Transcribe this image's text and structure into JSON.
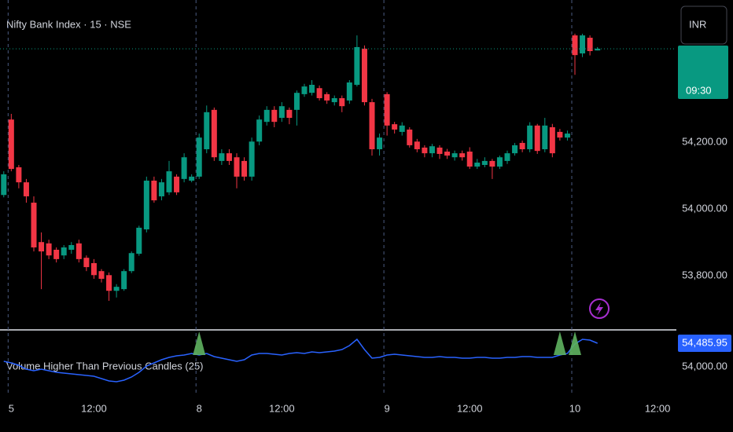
{
  "chart_data": [
    {
      "type": "candlestick",
      "title": "Nifty Bank Index · 15 · NSE",
      "currency": "INR",
      "countdown": "09:30",
      "up_color": "#089981",
      "down_color": "#f23645",
      "x": [
        0,
        1,
        2,
        3,
        4,
        5,
        6,
        7,
        8,
        9,
        10,
        11,
        12,
        13,
        14,
        15,
        16,
        17,
        18,
        19,
        20,
        21,
        22,
        23,
        24,
        25,
        26,
        27,
        28,
        29,
        30,
        31,
        32,
        33,
        34,
        35,
        36,
        37,
        38,
        39,
        40,
        41,
        42,
        43,
        44,
        45,
        46,
        47,
        48,
        49,
        50,
        51,
        52,
        53,
        54,
        55,
        56,
        57,
        58,
        59,
        60,
        61,
        62,
        63,
        64,
        65,
        66,
        67,
        68,
        69,
        70,
        71,
        72,
        73,
        74,
        75,
        76,
        77,
        78,
        79
      ],
      "open": [
        54042,
        54268,
        54125,
        54080,
        54019,
        53901,
        53897,
        53878,
        53861,
        53878,
        53897,
        53854,
        53838,
        53814,
        53802,
        53755,
        53760,
        53814,
        53866,
        53939,
        54085,
        54038,
        54050,
        54097,
        54090,
        54085,
        54097,
        54179,
        54297,
        54144,
        54167,
        54155,
        54144,
        54097,
        54202,
        54261,
        54297,
        54273,
        54297,
        54297,
        54344,
        54348,
        54362,
        54344,
        54320,
        54332,
        54325,
        54372,
        54480,
        54320,
        54179,
        54344,
        54254,
        54231,
        54238,
        54202,
        54184,
        54167,
        54184,
        54172,
        54155,
        54167,
        54172,
        54127,
        54132,
        54144,
        54127,
        54144,
        54167,
        54198,
        54179,
        54250,
        54179,
        54245,
        54231,
        54214,
        54520,
        54466,
        54513,
        54475
      ],
      "high": [
        54113,
        54285,
        54132,
        54090,
        54038,
        53930,
        53908,
        53885,
        53892,
        53901,
        53908,
        53861,
        53850,
        53820,
        53810,
        53775,
        53820,
        53873,
        53950,
        54097,
        54097,
        54090,
        54144,
        54104,
        54167,
        54104,
        54226,
        54310,
        54304,
        54179,
        54179,
        54167,
        54155,
        54214,
        54280,
        54308,
        54308,
        54320,
        54304,
        54355,
        54375,
        54386,
        54370,
        54350,
        54340,
        54340,
        54386,
        54520,
        54490,
        54330,
        54226,
        54350,
        54261,
        54260,
        54245,
        54210,
        54191,
        54195,
        54191,
        54180,
        54175,
        54175,
        54185,
        54150,
        54155,
        54150,
        54160,
        54175,
        54198,
        54205,
        54260,
        54255,
        54273,
        54255,
        54240,
        54235,
        54525,
        54525,
        54520,
        54485
      ],
      "low": [
        54035,
        54113,
        54062,
        54019,
        53873,
        53760,
        53850,
        53840,
        53850,
        53866,
        53840,
        53814,
        53791,
        53780,
        53725,
        53735,
        53755,
        53808,
        53860,
        53930,
        54019,
        54026,
        54042,
        54042,
        54080,
        54080,
        54090,
        54167,
        54144,
        54132,
        54132,
        54062,
        54085,
        54085,
        54191,
        54250,
        54245,
        54261,
        54254,
        54250,
        54336,
        54340,
        54325,
        54315,
        54310,
        54290,
        54315,
        54367,
        54310,
        54160,
        54160,
        54220,
        54226,
        54220,
        54184,
        54170,
        54155,
        54155,
        54150,
        54150,
        54145,
        54145,
        54120,
        54120,
        54125,
        54090,
        54120,
        54135,
        54160,
        54170,
        54170,
        54165,
        54170,
        54155,
        54205,
        54205,
        54402,
        54455,
        54460,
        54475
      ],
      "close": [
        54104,
        54120,
        54080,
        54038,
        53885,
        53873,
        53861,
        53850,
        53885,
        53892,
        53850,
        53826,
        53802,
        53791,
        53755,
        53767,
        53814,
        53868,
        53944,
        54085,
        54026,
        54080,
        54113,
        54050,
        54155,
        54097,
        54214,
        54290,
        54155,
        54167,
        54144,
        54097,
        54097,
        54202,
        54268,
        54297,
        54261,
        54308,
        54273,
        54348,
        54367,
        54372,
        54332,
        54325,
        54332,
        54308,
        54379,
        54485,
        54320,
        54179,
        54214,
        54250,
        54238,
        54250,
        54191,
        54179,
        54167,
        54188,
        54165,
        54160,
        54167,
        54155,
        54127,
        54139,
        54144,
        54127,
        54155,
        54167,
        54191,
        54179,
        54250,
        54174,
        54250,
        54167,
        54214,
        54226,
        54461,
        54520,
        54473,
        54480
      ],
      "xlim": [
        -0.5,
        89.5
      ],
      "xticks": [
        {
          "value": 1,
          "label": "5"
        },
        {
          "value": 12,
          "label": "12:00"
        },
        {
          "value": 26,
          "label": "8"
        },
        {
          "value": 37,
          "label": "12:00"
        },
        {
          "value": 51,
          "label": "9"
        },
        {
          "value": 62,
          "label": "12:00"
        },
        {
          "value": 76,
          "label": "10"
        },
        {
          "value": 87,
          "label": "12:00"
        }
      ],
      "ylim": [
        53638,
        54626
      ],
      "yticks": [
        {
          "value": 54200,
          "label": "54,200.00"
        },
        {
          "value": 54000,
          "label": "54,000.00"
        },
        {
          "value": 53800,
          "label": "53,800.00"
        }
      ]
    },
    {
      "type": "line",
      "title": "Volume Higher Than Previous Candles (25)",
      "color": "#2962ff",
      "signal_color": "#5fb360",
      "x": [
        0,
        1,
        2,
        3,
        4,
        5,
        6,
        7,
        8,
        9,
        10,
        11,
        12,
        13,
        14,
        15,
        16,
        17,
        18,
        19,
        20,
        21,
        22,
        23,
        24,
        25,
        26,
        27,
        28,
        29,
        30,
        31,
        32,
        33,
        34,
        35,
        36,
        37,
        38,
        39,
        40,
        41,
        42,
        43,
        44,
        45,
        46,
        47,
        48,
        49,
        50,
        51,
        52,
        53,
        54,
        55,
        56,
        57,
        58,
        59,
        60,
        61,
        62,
        63,
        64,
        65,
        66,
        67,
        68,
        69,
        70,
        71,
        72,
        73,
        74,
        75,
        76,
        77,
        78,
        79
      ],
      "values": [
        54113,
        54081,
        54032,
        53951,
        53919,
        53951,
        53919,
        53887,
        53870,
        53854,
        53838,
        53822,
        53806,
        53757,
        53708,
        53692,
        53725,
        53789,
        53887,
        54016,
        54081,
        54146,
        54194,
        54227,
        54243,
        54275,
        54243,
        54275,
        54211,
        54178,
        54146,
        54113,
        54146,
        54243,
        54275,
        54275,
        54259,
        54243,
        54275,
        54292,
        54275,
        54308,
        54292,
        54308,
        54324,
        54356,
        54437,
        54567,
        54356,
        54178,
        54194,
        54243,
        54259,
        54243,
        54227,
        54211,
        54194,
        54194,
        54211,
        54194,
        54194,
        54178,
        54178,
        54194,
        54194,
        54178,
        54178,
        54194,
        54194,
        54211,
        54211,
        54194,
        54194,
        54194,
        54243,
        54275,
        54470,
        54567,
        54551,
        54485.95
      ],
      "last_value_label": "54,485.95",
      "signals": [
        26,
        74,
        76
      ],
      "ylim": [
        53465,
        54761
      ],
      "yticks": [
        {
          "value": 54000,
          "label": "54,000.00"
        }
      ]
    }
  ]
}
